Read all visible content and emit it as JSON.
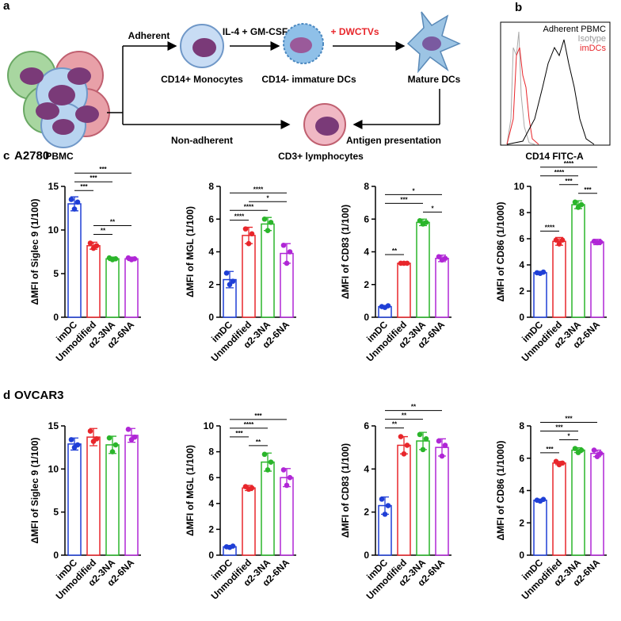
{
  "diagram": {
    "panel_a": "a",
    "pbmc": "PBMC",
    "adherent": "Adherent",
    "non_adherent": "Non-adherent",
    "monocytes": "CD14+ Monocytes",
    "cytokines": "IL-4 + GM-CSF",
    "immature": "CD14- immature DCs",
    "dwctvs": "+ DWCTVs",
    "mature": "Mature DCs",
    "antigen": "Antigen presentation",
    "lymphocytes": "CD3+ lymphocytes",
    "panel_b": "b",
    "legend_adherent": "Adherent PBMC",
    "legend_isotype": "Isotype",
    "legend_imdcs": "imDCs",
    "flow_xlabel": "CD14 FITC-A"
  },
  "rows": [
    {
      "label": "c",
      "title": "A2780"
    },
    {
      "label": "d",
      "title": "OVCAR3"
    }
  ],
  "chart_data": [
    {
      "type": "bar",
      "ylabel": "ΔMFI of Siglec 9 (1/100)",
      "categories": [
        "imDC",
        "Unmodified",
        "α2-3NA",
        "α2-6NA"
      ],
      "colors": [
        "#1f3fd6",
        "#e8262b",
        "#2ab52a",
        "#b026d6"
      ],
      "values": [
        13,
        8.2,
        6.7,
        6.7
      ],
      "errors": [
        0.8,
        0.4,
        0.2,
        0.2
      ],
      "points": [
        [
          13.5,
          12.4,
          13.2
        ],
        [
          8.5,
          7.9,
          8.2
        ],
        [
          6.8,
          6.6,
          6.7
        ],
        [
          6.8,
          6.6,
          6.7
        ]
      ],
      "ylim": [
        0,
        15
      ],
      "yticks": [
        0,
        5,
        10,
        15
      ],
      "significance": [
        {
          "pair": [
            0,
            3
          ],
          "label": "***"
        },
        {
          "pair": [
            0,
            2
          ],
          "label": "***"
        },
        {
          "pair": [
            0,
            1
          ],
          "label": "***"
        },
        {
          "pair": [
            1,
            3
          ],
          "label": "**"
        },
        {
          "pair": [
            1,
            2
          ],
          "label": "**"
        }
      ]
    },
    {
      "type": "bar",
      "ylabel": "ΔMFI of MGL (1/100)",
      "categories": [
        "imDC",
        "Unmodified",
        "α2-3NA",
        "α2-6NA"
      ],
      "colors": [
        "#1f3fd6",
        "#e8262b",
        "#2ab52a",
        "#b026d6"
      ],
      "values": [
        2.3,
        5,
        5.7,
        3.9
      ],
      "errors": [
        0.5,
        0.5,
        0.4,
        0.6
      ],
      "points": [
        [
          2.7,
          2.0,
          2.2
        ],
        [
          5.4,
          4.5,
          5.1
        ],
        [
          6.0,
          5.3,
          5.8
        ],
        [
          4.4,
          3.3,
          4.0
        ]
      ],
      "ylim": [
        0,
        8
      ],
      "yticks": [
        0,
        2,
        4,
        6,
        8
      ],
      "significance": [
        {
          "pair": [
            0,
            3
          ],
          "label": "****"
        },
        {
          "pair": [
            1,
            3
          ],
          "label": "*"
        },
        {
          "pair": [
            0,
            2
          ],
          "label": "****"
        },
        {
          "pair": [
            0,
            1
          ],
          "label": "****"
        }
      ]
    },
    {
      "type": "bar",
      "ylabel": "ΔMFI of CD83 (1/100)",
      "categories": [
        "imDC",
        "Unmodified",
        "α2-3NA",
        "α2-6NA"
      ],
      "colors": [
        "#1f3fd6",
        "#e8262b",
        "#2ab52a",
        "#b026d6"
      ],
      "values": [
        0.65,
        3.3,
        5.8,
        3.6
      ],
      "errors": [
        0.05,
        0.05,
        0.2,
        0.2
      ],
      "points": [
        [
          0.65,
          0.6,
          0.7
        ],
        [
          3.3,
          3.3,
          3.3
        ],
        [
          5.9,
          5.7,
          5.8
        ],
        [
          3.7,
          3.5,
          3.6
        ]
      ],
      "ylim": [
        0,
        8
      ],
      "yticks": [
        0,
        2,
        4,
        6,
        8
      ],
      "significance": [
        {
          "pair": [
            0,
            3
          ],
          "label": "*"
        },
        {
          "pair": [
            0,
            2
          ],
          "label": "***"
        },
        {
          "pair": [
            2,
            3
          ],
          "label": "*"
        },
        {
          "pair": [
            0,
            1
          ],
          "label": "**"
        }
      ]
    },
    {
      "type": "bar",
      "ylabel": "ΔMFI of CD86 (1/1000)",
      "categories": [
        "imDC",
        "Unmodified",
        "α2-3NA",
        "α2-6NA"
      ],
      "colors": [
        "#1f3fd6",
        "#e8262b",
        "#2ab52a",
        "#b026d6"
      ],
      "values": [
        3.4,
        5.8,
        8.6,
        5.75
      ],
      "errors": [
        0.1,
        0.3,
        0.3,
        0.2
      ],
      "points": [
        [
          3.4,
          3.35,
          3.45
        ],
        [
          5.9,
          5.6,
          5.9
        ],
        [
          8.8,
          8.4,
          8.6
        ],
        [
          5.8,
          5.7,
          5.75
        ]
      ],
      "ylim": [
        0,
        10
      ],
      "yticks": [
        0,
        2,
        4,
        6,
        8,
        10
      ],
      "significance": [
        {
          "pair": [
            0,
            3
          ],
          "label": "****"
        },
        {
          "pair": [
            0,
            2
          ],
          "label": "****"
        },
        {
          "pair": [
            1,
            2
          ],
          "label": "***"
        },
        {
          "pair": [
            2,
            3
          ],
          "label": "***"
        },
        {
          "pair": [
            0,
            1
          ],
          "label": "****"
        }
      ]
    },
    {
      "type": "bar",
      "ylabel": "ΔMFI of Siglec 9 (1/100)",
      "categories": [
        "imDC",
        "Unmodified",
        "α2-3NA",
        "α2-6NA"
      ],
      "colors": [
        "#1f3fd6",
        "#e8262b",
        "#2ab52a",
        "#b026d6"
      ],
      "values": [
        12.9,
        13.7,
        12.8,
        13.9
      ],
      "errors": [
        0.7,
        1,
        1,
        0.8
      ],
      "points": [
        [
          13.4,
          12.5,
          12.8
        ],
        [
          14.4,
          13.2,
          13.5
        ],
        [
          13.6,
          12.0,
          12.8
        ],
        [
          14.6,
          13.4,
          13.7
        ]
      ],
      "ylim": [
        0,
        15
      ],
      "yticks": [
        0,
        5,
        10,
        15
      ],
      "significance": []
    },
    {
      "type": "bar",
      "ylabel": "ΔMFI of MGL (1/100)",
      "categories": [
        "imDC",
        "Unmodified",
        "α2-3NA",
        "α2-6NA"
      ],
      "colors": [
        "#1f3fd6",
        "#e8262b",
        "#2ab52a",
        "#b026d6"
      ],
      "values": [
        0.65,
        5.2,
        7.2,
        6
      ],
      "errors": [
        0.05,
        0.2,
        0.7,
        0.7
      ],
      "points": [
        [
          0.65,
          0.6,
          0.7
        ],
        [
          5.3,
          5.1,
          5.2
        ],
        [
          7.8,
          6.6,
          7.2
        ],
        [
          6.6,
          5.4,
          6.0
        ]
      ],
      "ylim": [
        0,
        10
      ],
      "yticks": [
        0,
        2,
        4,
        6,
        8,
        10
      ],
      "significance": [
        {
          "pair": [
            0,
            3
          ],
          "label": "***"
        },
        {
          "pair": [
            0,
            2
          ],
          "label": "****"
        },
        {
          "pair": [
            0,
            1
          ],
          "label": "***"
        },
        {
          "pair": [
            1,
            2
          ],
          "label": "**"
        }
      ]
    },
    {
      "type": "bar",
      "ylabel": "ΔMFI of CD83 (1/100)",
      "categories": [
        "imDC",
        "Unmodified",
        "α2-3NA",
        "α2-6NA"
      ],
      "colors": [
        "#1f3fd6",
        "#e8262b",
        "#2ab52a",
        "#b026d6"
      ],
      "values": [
        2.3,
        5.1,
        5.3,
        5
      ],
      "errors": [
        0.4,
        0.4,
        0.4,
        0.4
      ],
      "points": [
        [
          2.6,
          1.9,
          2.3
        ],
        [
          5.5,
          4.7,
          5.1
        ],
        [
          5.6,
          4.9,
          5.4
        ],
        [
          5.3,
          4.6,
          5.1
        ]
      ],
      "ylim": [
        0,
        6
      ],
      "yticks": [
        0,
        2,
        4,
        6
      ],
      "significance": [
        {
          "pair": [
            0,
            3
          ],
          "label": "**"
        },
        {
          "pair": [
            0,
            2
          ],
          "label": "**"
        },
        {
          "pair": [
            0,
            1
          ],
          "label": "**"
        }
      ]
    },
    {
      "type": "bar",
      "ylabel": "ΔMFI of CD86 (1/1000)",
      "categories": [
        "imDC",
        "Unmodified",
        "α2-3NA",
        "α2-6NA"
      ],
      "colors": [
        "#1f3fd6",
        "#e8262b",
        "#2ab52a",
        "#b026d6"
      ],
      "values": [
        3.4,
        5.7,
        6.5,
        6.3
      ],
      "errors": [
        0.05,
        0.1,
        0.15,
        0.2
      ],
      "points": [
        [
          3.4,
          3.35,
          3.45
        ],
        [
          5.8,
          5.6,
          5.7
        ],
        [
          6.6,
          6.35,
          6.5
        ],
        [
          6.5,
          6.1,
          6.3
        ]
      ],
      "ylim": [
        0,
        8
      ],
      "yticks": [
        0,
        2,
        4,
        6,
        8
      ],
      "significance": [
        {
          "pair": [
            0,
            3
          ],
          "label": "***"
        },
        {
          "pair": [
            0,
            2
          ],
          "label": "***"
        },
        {
          "pair": [
            1,
            2
          ],
          "label": "*"
        },
        {
          "pair": [
            0,
            1
          ],
          "label": "***"
        }
      ]
    }
  ]
}
